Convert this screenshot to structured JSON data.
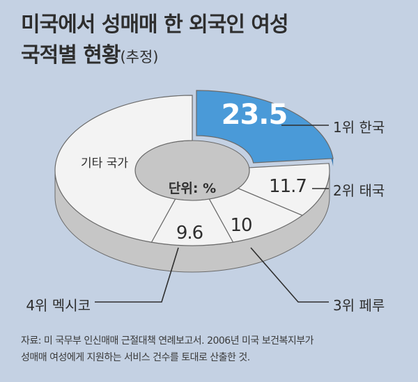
{
  "title_line1": "미국에서 성매매 한 외국인 여성",
  "title_line2": "국적별 현황",
  "title_paren": "(추정)",
  "unit_label": "단위: %",
  "source_line1": "자료: 미 국무부 인신매매 근절대책 연례보고서. 2006년 미국 보건복지부가",
  "source_line2": "성매매 여성에게 지원하는 서비스 건수를 토대로 산출한 것.",
  "colors": {
    "highlight": "#4a9ad8",
    "slice": "#f3f3f3",
    "side": "#c6c6c6",
    "stroke": "#6a6a6a"
  },
  "chart_data": {
    "type": "pie",
    "donut": true,
    "unit": "%",
    "slices": [
      {
        "label": "1위 한국",
        "value": 23.5,
        "value_label": "23.5",
        "highlight": true
      },
      {
        "label": "2위 태국",
        "value": 11.7,
        "value_label": "11.7"
      },
      {
        "label": "3위 페루",
        "value": 10,
        "value_label": "10"
      },
      {
        "label": "4위 멕시코",
        "value": 9.6,
        "value_label": "9.6"
      },
      {
        "label": "기타 국가",
        "value": 45.2,
        "value_label": ""
      }
    ]
  }
}
